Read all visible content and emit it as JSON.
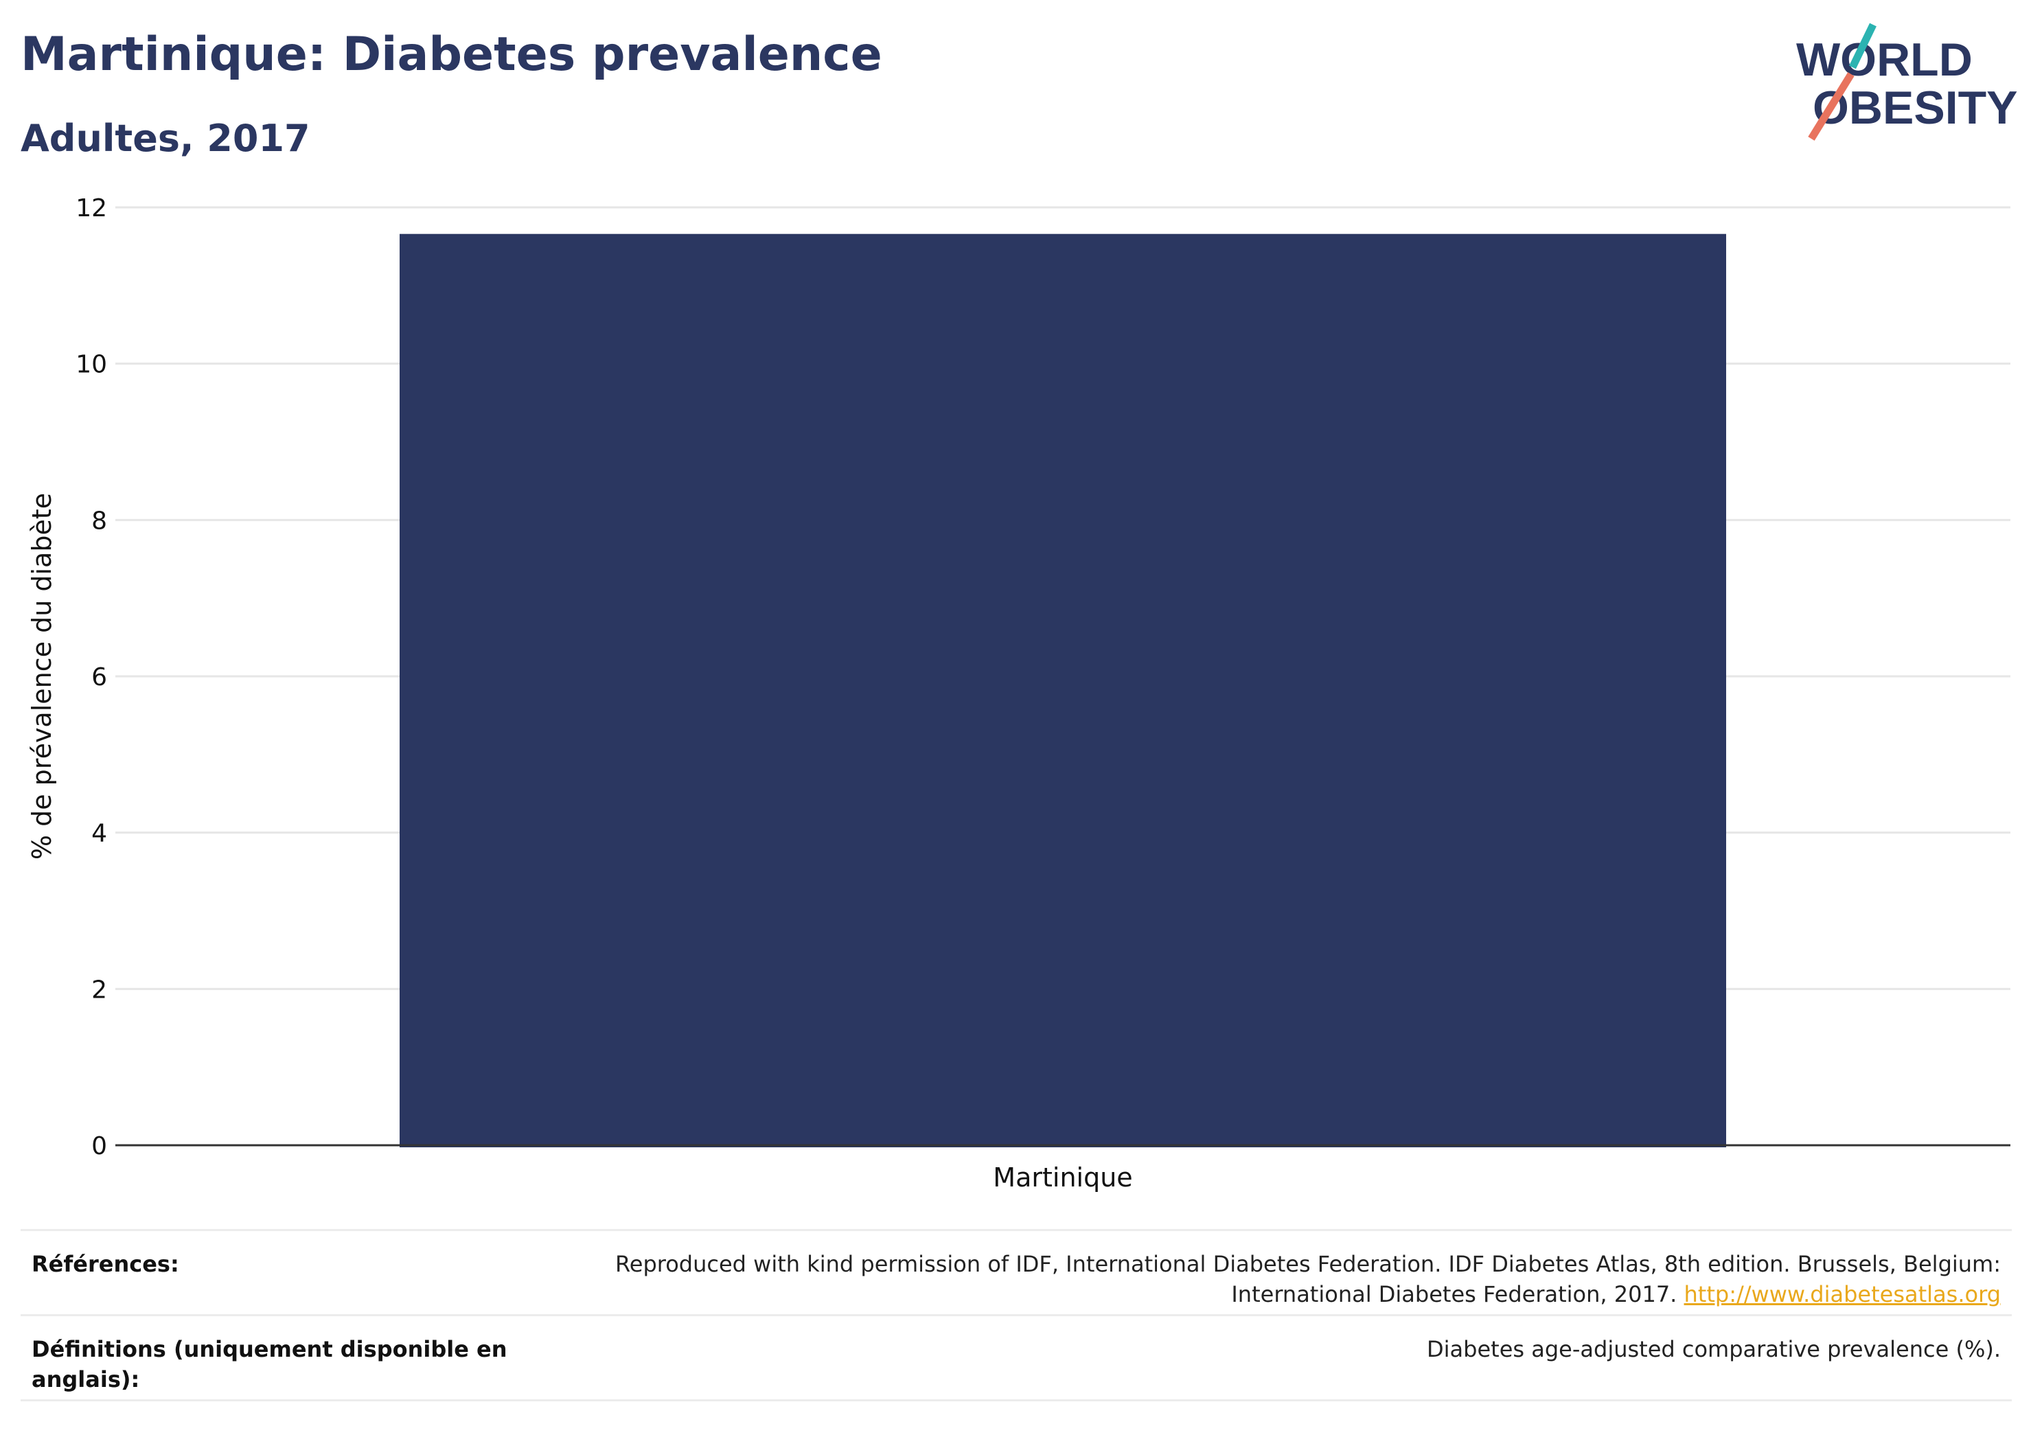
{
  "header": {
    "title": "Martinique: Diabetes prevalence",
    "subtitle": "Adultes, 2017"
  },
  "logo": {
    "line1": "WORLD",
    "line2": "OBESITY",
    "accent_teal": "#2bb3b1",
    "accent_coral": "#e8735e"
  },
  "chart_data": {
    "type": "bar",
    "categories": [
      "Martinique"
    ],
    "values": [
      11.66
    ],
    "ylabel": "% de prévalence du diabète",
    "ylim": [
      0,
      12
    ],
    "yticks": [
      0,
      2,
      4,
      6,
      8,
      10,
      12
    ],
    "bar_color": "#2b3761",
    "grid": true
  },
  "footer": {
    "references_label": "Références:",
    "references_text_line1": "Reproduced with kind permission of IDF, International Diabetes Federation. IDF Diabetes Atlas, 8th edition. Brussels, Belgium:",
    "references_text_line2": "International Diabetes Federation, 2017.",
    "references_link": "http://www.diabetesatlas.org",
    "definitions_label_line1": "Définitions (uniquement disponible en",
    "definitions_label_line2": "anglais):",
    "definitions_text": "Diabetes age-adjusted comparative prevalence (%)."
  }
}
